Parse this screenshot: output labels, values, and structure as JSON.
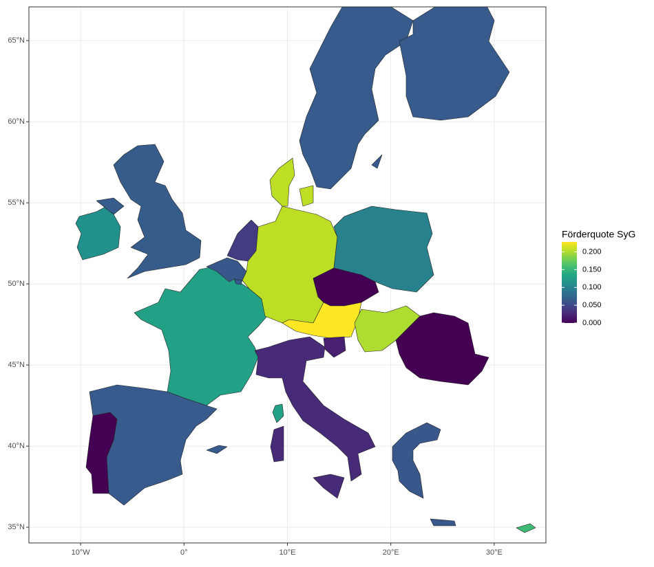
{
  "chart_data": {
    "type": "choropleth",
    "legend_title": "Förderquote SyG",
    "colormap": "viridis",
    "values": [
      0.114,
      0.066,
      0.13,
      0.062,
      0.062,
      0.04,
      0.205,
      0.205,
      0.1,
      0.0,
      0.228,
      0.02,
      0.2,
      0.0,
      0.027,
      0.065,
      0.0,
      0.062,
      0.155,
      0.065,
      0.065
    ],
    "clim": [
      0,
      0.228
    ],
    "cticks": [
      {
        "value": 0,
        "label": "0.000"
      },
      {
        "value": 0.05,
        "label": "0.050"
      },
      {
        "value": 0.1,
        "label": "0.100"
      },
      {
        "value": 0.15,
        "label": "0.150"
      },
      {
        "value": 0.2,
        "label": "0.200"
      }
    ],
    "xlim": [
      -15,
      35
    ],
    "ylim": [
      34.03,
      67.08
    ],
    "xticks": [
      {
        "value": -10,
        "label": "10°W"
      },
      {
        "value": 0,
        "label": "0°"
      },
      {
        "value": 10,
        "label": "10°E"
      },
      {
        "value": 20,
        "label": "20°E"
      },
      {
        "value": 30,
        "label": "30°E"
      }
    ],
    "yticks": [
      {
        "value": 35,
        "label": "35°N"
      },
      {
        "value": 40,
        "label": "40°N"
      },
      {
        "value": 45,
        "label": "45°N"
      },
      {
        "value": 50,
        "label": "50°N"
      },
      {
        "value": 55,
        "label": "55°N"
      },
      {
        "value": 60,
        "label": "60°N"
      },
      {
        "value": 65,
        "label": "65°N"
      }
    ],
    "grid": true
  }
}
